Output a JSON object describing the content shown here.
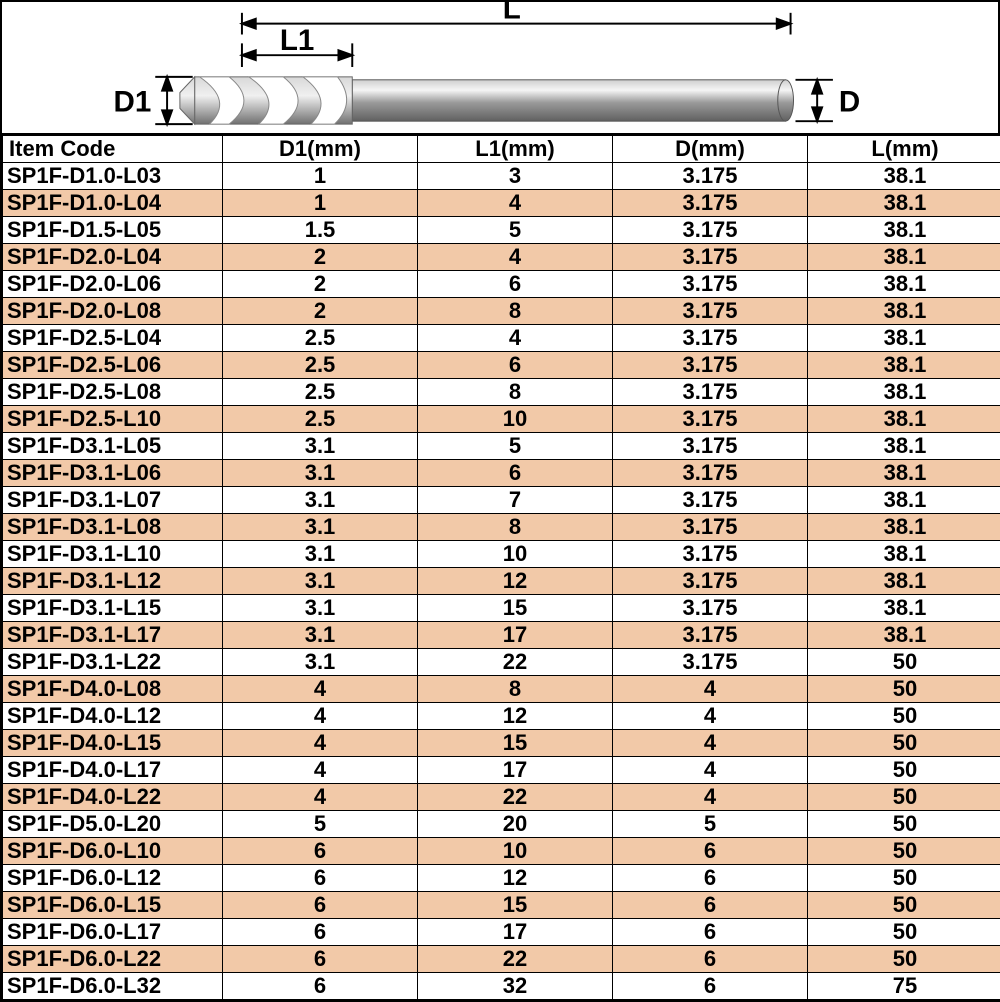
{
  "diagram": {
    "labels": {
      "L": "L",
      "L1": "L1",
      "D1": "D1",
      "D": "D"
    },
    "colors": {
      "bit_light": "#e8e8e8",
      "bit_mid": "#b8b8b8",
      "bit_dark": "#787878",
      "line": "#000000"
    }
  },
  "table": {
    "columns": [
      "Item Code",
      "D1(mm)",
      "L1(mm)",
      "D(mm)",
      "L(mm)"
    ],
    "shade_color": "#f2c9a8",
    "rows": [
      {
        "shade": false,
        "cells": [
          "SP1F-D1.0-L03",
          "1",
          "3",
          "3.175",
          "38.1"
        ]
      },
      {
        "shade": true,
        "cells": [
          "SP1F-D1.0-L04",
          "1",
          "4",
          "3.175",
          "38.1"
        ]
      },
      {
        "shade": false,
        "cells": [
          "SP1F-D1.5-L05",
          "1.5",
          "5",
          "3.175",
          "38.1"
        ]
      },
      {
        "shade": true,
        "cells": [
          "SP1F-D2.0-L04",
          "2",
          "4",
          "3.175",
          "38.1"
        ]
      },
      {
        "shade": false,
        "cells": [
          "SP1F-D2.0-L06",
          "2",
          "6",
          "3.175",
          "38.1"
        ]
      },
      {
        "shade": true,
        "cells": [
          "SP1F-D2.0-L08",
          "2",
          "8",
          "3.175",
          "38.1"
        ]
      },
      {
        "shade": false,
        "cells": [
          "SP1F-D2.5-L04",
          "2.5",
          "4",
          "3.175",
          "38.1"
        ]
      },
      {
        "shade": true,
        "cells": [
          "SP1F-D2.5-L06",
          "2.5",
          "6",
          "3.175",
          "38.1"
        ]
      },
      {
        "shade": false,
        "cells": [
          "SP1F-D2.5-L08",
          "2.5",
          "8",
          "3.175",
          "38.1"
        ]
      },
      {
        "shade": true,
        "cells": [
          "SP1F-D2.5-L10",
          "2.5",
          "10",
          "3.175",
          "38.1"
        ]
      },
      {
        "shade": false,
        "cells": [
          "SP1F-D3.1-L05",
          "3.1",
          "5",
          "3.175",
          "38.1"
        ]
      },
      {
        "shade": true,
        "cells": [
          "SP1F-D3.1-L06",
          "3.1",
          "6",
          "3.175",
          "38.1"
        ]
      },
      {
        "shade": false,
        "cells": [
          "SP1F-D3.1-L07",
          "3.1",
          "7",
          "3.175",
          "38.1"
        ]
      },
      {
        "shade": true,
        "cells": [
          "SP1F-D3.1-L08",
          "3.1",
          "8",
          "3.175",
          "38.1"
        ]
      },
      {
        "shade": false,
        "cells": [
          "SP1F-D3.1-L10",
          "3.1",
          "10",
          "3.175",
          "38.1"
        ]
      },
      {
        "shade": true,
        "cells": [
          "SP1F-D3.1-L12",
          "3.1",
          "12",
          "3.175",
          "38.1"
        ]
      },
      {
        "shade": false,
        "cells": [
          "SP1F-D3.1-L15",
          "3.1",
          "15",
          "3.175",
          "38.1"
        ]
      },
      {
        "shade": true,
        "cells": [
          "SP1F-D3.1-L17",
          "3.1",
          "17",
          "3.175",
          "38.1"
        ]
      },
      {
        "shade": false,
        "cells": [
          "SP1F-D3.1-L22",
          "3.1",
          "22",
          "3.175",
          "50"
        ]
      },
      {
        "shade": true,
        "cells": [
          "SP1F-D4.0-L08",
          "4",
          "8",
          "4",
          "50"
        ]
      },
      {
        "shade": false,
        "cells": [
          "SP1F-D4.0-L12",
          "4",
          "12",
          "4",
          "50"
        ]
      },
      {
        "shade": true,
        "cells": [
          "SP1F-D4.0-L15",
          "4",
          "15",
          "4",
          "50"
        ]
      },
      {
        "shade": false,
        "cells": [
          "SP1F-D4.0-L17",
          "4",
          "17",
          "4",
          "50"
        ]
      },
      {
        "shade": true,
        "cells": [
          "SP1F-D4.0-L22",
          "4",
          "22",
          "4",
          "50"
        ]
      },
      {
        "shade": false,
        "cells": [
          "SP1F-D5.0-L20",
          "5",
          "20",
          "5",
          "50"
        ]
      },
      {
        "shade": true,
        "cells": [
          "SP1F-D6.0-L10",
          "6",
          "10",
          "6",
          "50"
        ]
      },
      {
        "shade": false,
        "cells": [
          "SP1F-D6.0-L12",
          "6",
          "12",
          "6",
          "50"
        ]
      },
      {
        "shade": true,
        "cells": [
          "SP1F-D6.0-L15",
          "6",
          "15",
          "6",
          "50"
        ]
      },
      {
        "shade": false,
        "cells": [
          "SP1F-D6.0-L17",
          "6",
          "17",
          "6",
          "50"
        ]
      },
      {
        "shade": true,
        "cells": [
          "SP1F-D6.0-L22",
          "6",
          "22",
          "6",
          "50"
        ]
      },
      {
        "shade": false,
        "cells": [
          "SP1F-D6.0-L32",
          "6",
          "32",
          "6",
          "75"
        ]
      }
    ]
  }
}
